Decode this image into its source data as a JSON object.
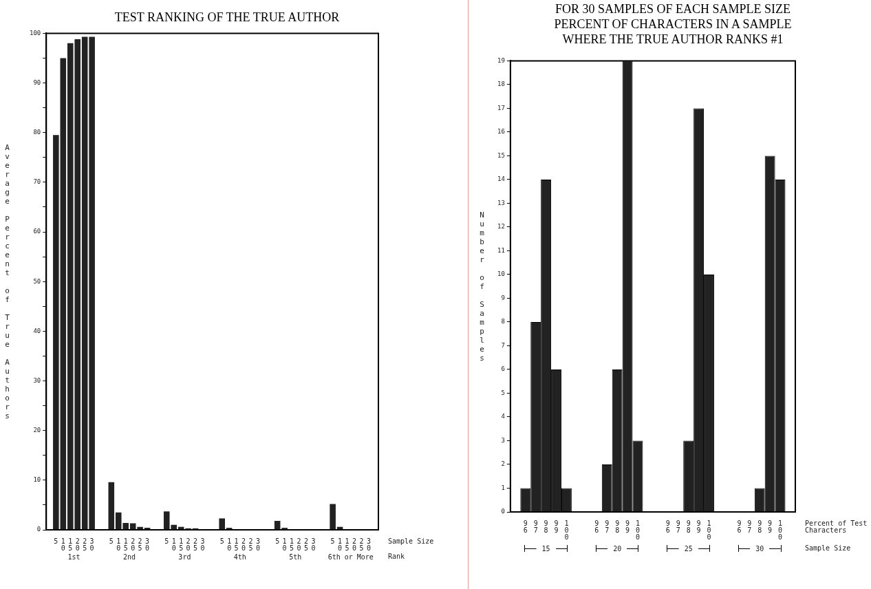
{
  "chart_data": [
    {
      "type": "bar",
      "title": "TEST RANKING OF THE TRUE AUTHOR",
      "ylabel": "Average Percent of True Authors",
      "xlabel": "Rank",
      "annotations": [
        "Sample Size"
      ],
      "categories": [
        "1st",
        "2nd",
        "3rd",
        "4th",
        "5th",
        "6th or More"
      ],
      "series": [
        {
          "name": "5",
          "color": "#222222",
          "values": [
            79.5,
            9.6,
            3.7,
            2.3,
            1.8,
            5.2
          ]
        },
        {
          "name": "10",
          "color": "#222222",
          "values": [
            95,
            3.5,
            1,
            0.4,
            0.4,
            0.6
          ]
        },
        {
          "name": "15",
          "color": "#222222",
          "values": [
            98,
            1.4,
            0.6,
            null,
            null,
            null
          ]
        },
        {
          "name": "20",
          "color": "#222222",
          "values": [
            98.8,
            1.3,
            0.3,
            0,
            0,
            0
          ]
        },
        {
          "name": "25",
          "color": "#222222",
          "values": [
            99.3,
            0.6,
            0.3,
            0,
            0,
            0
          ]
        },
        {
          "name": "30",
          "color": "#222222",
          "values": [
            99.3,
            0.4,
            0,
            0,
            0,
            0
          ]
        }
      ],
      "ylim": [
        0,
        100
      ],
      "yticks": [
        0,
        {
          "value": 5,
          "label": null
        },
        10,
        {
          "value": 15,
          "label": null
        },
        20,
        {
          "value": 25,
          "label": null
        },
        30,
        {
          "value": 35,
          "label": null
        },
        40,
        {
          "value": 45,
          "label": null
        },
        50,
        {
          "value": 55,
          "label": null
        },
        60,
        {
          "value": 65,
          "label": null
        },
        70,
        {
          "value": 75,
          "label": null
        },
        80,
        {
          "value": 85,
          "label": null
        },
        90,
        {
          "value": 95,
          "label": null
        },
        100
      ]
    },
    {
      "type": "bar",
      "title": "FOR 30 SAMPLES OF EACH SAMPLE SIZE",
      "subtitle": "PERCENT OF CHARACTERS IN A SAMPLE WHERE THE TRUE AUTHOR RANKS #1",
      "ylabel": "Number of Samples",
      "xlabel": "Sample Size",
      "annotations": [
        "Percent of Test Characters"
      ],
      "categories": [
        "15",
        "20",
        "25",
        "30"
      ],
      "series": [
        {
          "name": "96",
          "color": "#222222",
          "values": [
            1,
            0,
            0,
            0
          ]
        },
        {
          "name": "97",
          "color": "#222222",
          "values": [
            8,
            2,
            0,
            0
          ]
        },
        {
          "name": "98",
          "color": "#222222",
          "values": [
            14,
            6,
            3,
            1
          ]
        },
        {
          "name": "99",
          "color": "#222222",
          "values": [
            6,
            19,
            17,
            15
          ]
        },
        {
          "name": "100",
          "color": "#222222",
          "values": [
            1,
            3,
            10,
            14
          ]
        }
      ],
      "ylim": [
        0,
        19
      ],
      "yticks": [
        0,
        1,
        2,
        3,
        4,
        5,
        6,
        7,
        8,
        9,
        10,
        11,
        12,
        13,
        14,
        15,
        16,
        17,
        18,
        19
      ]
    }
  ]
}
